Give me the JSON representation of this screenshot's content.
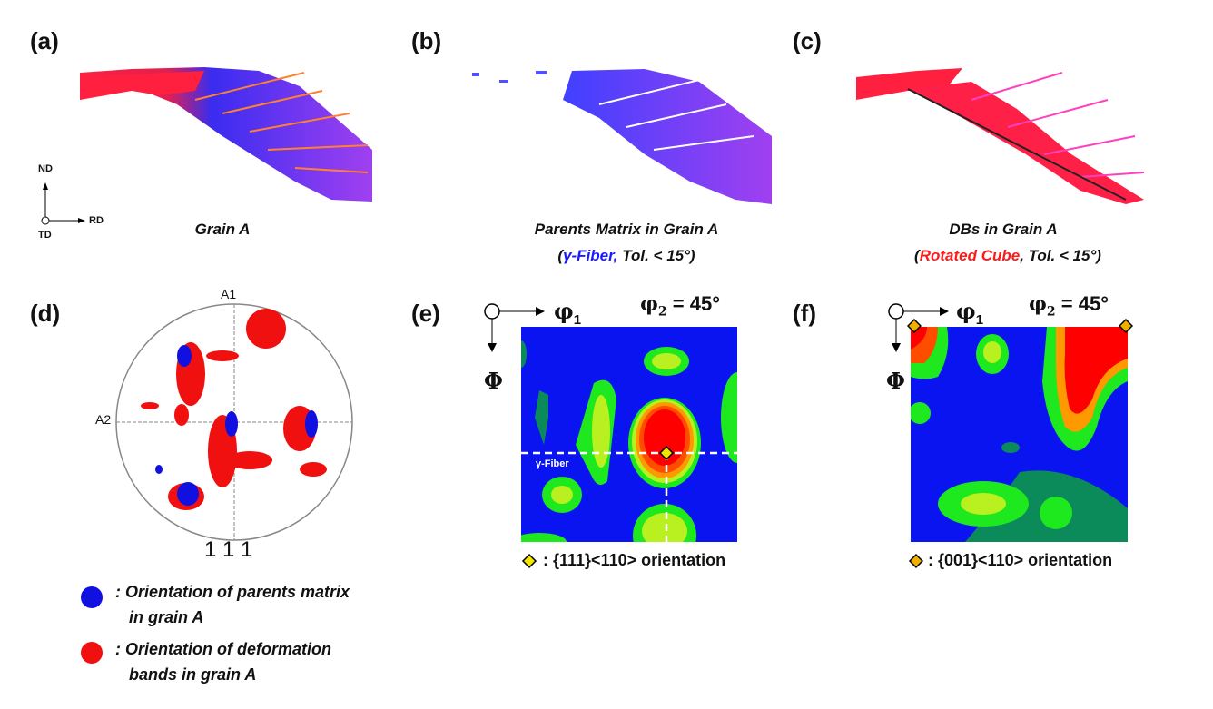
{
  "panels": {
    "a": {
      "label": "(a)",
      "caption": "Grain A",
      "axes": {
        "nd": "ND",
        "rd": "RD",
        "td": "TD"
      }
    },
    "b": {
      "label": "(b)",
      "caption1": "Parents Matrix in Grain A",
      "caption2_open": "(",
      "caption2_hl": "γ-Fiber,",
      "caption2_rest": " Tol. < 15°)",
      "highlight_color": "#1a1aff"
    },
    "c": {
      "label": "(c)",
      "caption1": "DBs in Grain A",
      "caption2_open": "(",
      "caption2_hl": "Rotated Cube",
      "caption2_rest": ", Tol. < 15°)",
      "highlight_color": "#ff1a1a"
    },
    "d": {
      "label": "(d)",
      "a1": "A1",
      "a2": "A2",
      "pole": "1 1 1",
      "legend": [
        {
          "color": "#1010e0",
          "line1": ": Orientation of parents matrix",
          "line2": "in grain A"
        },
        {
          "color": "#f01010",
          "line1": ": Orientation of deformation",
          "line2": "bands in grain A"
        }
      ]
    },
    "e": {
      "label": "(e)",
      "phi1": "φ",
      "phi1_sub": "1",
      "phi2": "φ",
      "phi2_sub": "2",
      "phi2_value": " = 45°",
      "Phi": "Φ",
      "fiber_label": "γ-Fiber",
      "legend": ": {111}<110> orientation",
      "marker_color": "#f2e600"
    },
    "f": {
      "label": "(f)",
      "phi1": "φ",
      "phi1_sub": "1",
      "phi2": "φ",
      "phi2_sub": "2",
      "phi2_value": " = 45°",
      "Phi": "Φ",
      "legend": ": {001}<110> orientation",
      "marker_color": "#f0b000"
    }
  },
  "colors": {
    "odf_background": "#0a14f0",
    "odf_levels": [
      "#0b8a5a",
      "#1ee81e",
      "#b8f020",
      "#f5e000",
      "#ff9900",
      "#ff4d00",
      "#ff0000"
    ]
  }
}
